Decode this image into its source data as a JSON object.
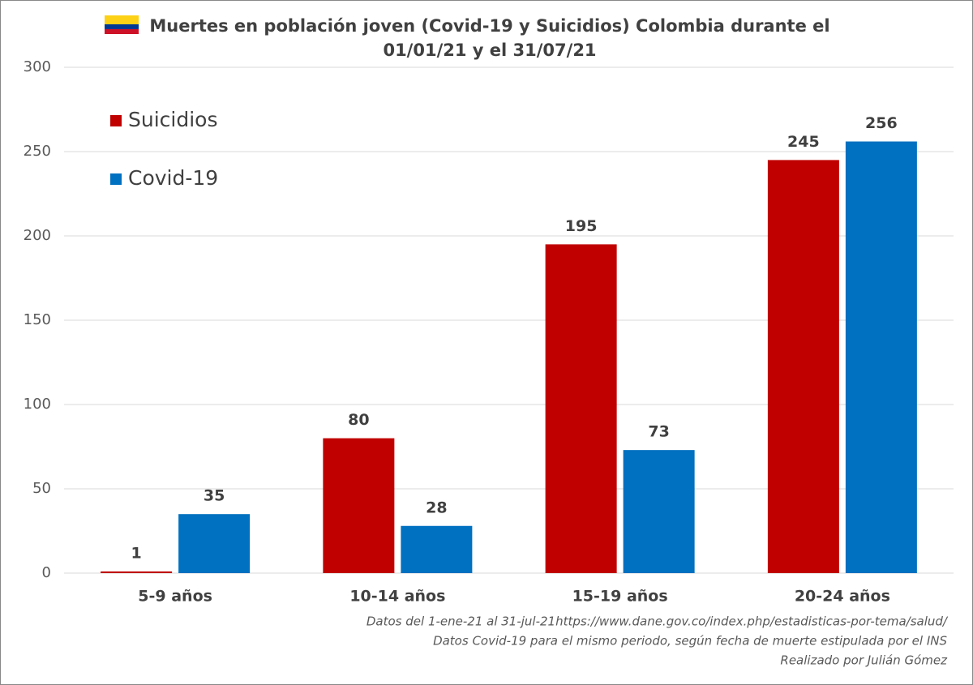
{
  "chart_data": {
    "type": "bar",
    "title": "Muertes en población joven (Covid-19 y Suicidios) Colombia durante el 01/01/21 y el 31/07/21",
    "categories": [
      "5-9 años",
      "10-14 años",
      "15-19 años",
      "20-24 años"
    ],
    "series": [
      {
        "name": "Suicidios",
        "color": "#c00000",
        "values": [
          1,
          80,
          195,
          245
        ]
      },
      {
        "name": "Covid-19",
        "color": "#0070c0",
        "values": [
          35,
          28,
          73,
          256
        ]
      }
    ],
    "ylim": [
      0,
      300
    ],
    "yticks": [
      0,
      50,
      100,
      150,
      200,
      250,
      300
    ],
    "grid": true,
    "legend": "top-left",
    "notes": [
      "Datos del 1-ene-21 al 31-jul-21https://www.dane.gov.co/index.php/estadisticas-por-tema/salud/",
      "Datos Covid-19 para el mismo periodo, según fecha de muerte estipulada por el INS",
      "Realizado por Julián Gómez"
    ]
  }
}
